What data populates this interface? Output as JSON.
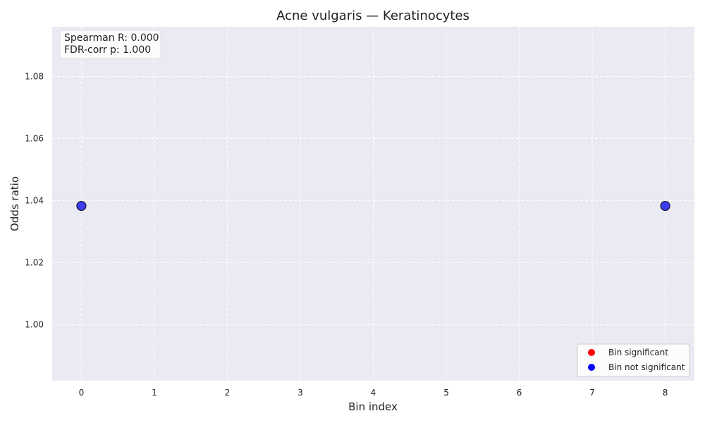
{
  "chart_data": {
    "type": "scatter",
    "title": "Acne vulgaris — Keratinocytes",
    "xlabel": "Bin index",
    "ylabel": "Odds ratio",
    "xlim": [
      -0.4,
      8.4
    ],
    "ylim": [
      0.982,
      1.096
    ],
    "x_ticks": [
      0,
      1,
      2,
      3,
      4,
      5,
      6,
      7,
      8
    ],
    "y_ticks": [
      1.0,
      1.02,
      1.04,
      1.06,
      1.08
    ],
    "y_tick_labels": [
      "1.00",
      "1.02",
      "1.04",
      "1.06",
      "1.08"
    ],
    "grid": true,
    "series": [
      {
        "name": "Bin significant",
        "color": "#ff0000",
        "x": [],
        "y": []
      },
      {
        "name": "Bin not significant",
        "color": "#0000ff",
        "x": [
          0,
          8
        ],
        "y": [
          1.0383,
          1.0383
        ]
      }
    ],
    "annotations": [
      "Spearman R: 0.000",
      "FDR-corr p: 1.000"
    ],
    "legend_position": "bottom-right",
    "colors": {
      "background": "#eaeaf2",
      "grid": "#ffffff",
      "point_fill": "#2a2aee",
      "point_edge": "#1a1a2e"
    }
  }
}
